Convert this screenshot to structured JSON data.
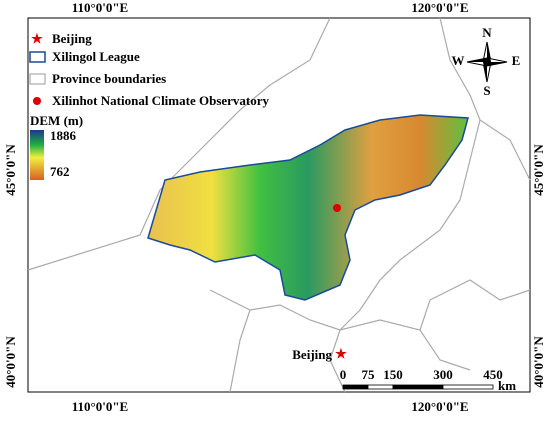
{
  "map": {
    "legend": {
      "items": [
        "Beijing",
        "Xilingol League",
        "Province boundaries",
        "Xilinhot National Climate Observatory"
      ],
      "dem_title": "DEM (m)",
      "dem_max": 1886,
      "dem_min": 762
    },
    "graticule": {
      "longitudes": [
        "110°0'0\"E",
        "120°0'0\"E"
      ],
      "latitudes": [
        "45°0'0\"N",
        "40°0'0\"N"
      ]
    },
    "compass": {
      "n": "N",
      "s": "S",
      "e": "E",
      "w": "W"
    },
    "place_label": "Beijing",
    "scale_bar": {
      "ticks": [
        0,
        75,
        150,
        300,
        450
      ],
      "unit": "km"
    }
  }
}
